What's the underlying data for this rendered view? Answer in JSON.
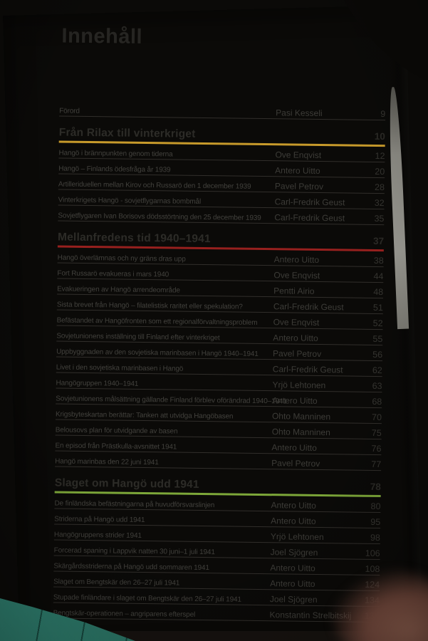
{
  "photo": {
    "background_color": "#0b0a08",
    "paper_color": "#b7b6b2",
    "table_color": "#2f8070"
  },
  "book_page": {
    "title": "Innehåll",
    "front_matter": {
      "title": "Förord",
      "author": "Pasi Kesseli",
      "page": "9"
    },
    "sections": [
      {
        "title": "Från Rilax till vinterkriget",
        "page": "10",
        "accent_color": "#c79a2b",
        "entries": [
          {
            "title": "Hangö i brännpunkten genom tiderna",
            "author": "Ove Enqvist",
            "page": "12"
          },
          {
            "title": "Hangö – Finlands ödesfråga år 1939",
            "author": "Antero Uitto",
            "page": "20"
          },
          {
            "title": "Artilleriduellen mellan Kirov och Russarö den 1 december 1939",
            "author": "Pavel Petrov",
            "page": "28"
          },
          {
            "title": "Vinterkrigets Hangö - sovjetflygarnas bombmål",
            "author": "Carl-Fredrik Geust",
            "page": "32"
          },
          {
            "title": "Sovjetflygaren Ivan Borisovs dödsstörtning den 25 december 1939",
            "author": "Carl-Fredrik Geust",
            "page": "35"
          }
        ]
      },
      {
        "title": "Mellanfredens tid 1940–1941",
        "page": "37",
        "accent_color": "#97201e",
        "entries": [
          {
            "title": "Hangö överlämnas och ny gräns dras upp",
            "author": "Antero Uitto",
            "page": "38"
          },
          {
            "title": "Fort Russarö evakueras i mars 1940",
            "author": "Ove Enqvist",
            "page": "44"
          },
          {
            "title": "Evakueringen av Hangö arrendeområde",
            "author": "Pentti Airio",
            "page": "48"
          },
          {
            "title": "Sista brevet från Hangö – filatelistisk raritet eller spekulation?",
            "author": "Carl-Fredrik Geust",
            "page": "51"
          },
          {
            "title": "Befästandet av Hangöfronten som ett regionalförvaltningsproblem",
            "author": "Ove Enqvist",
            "page": "52"
          },
          {
            "title": "Sovjetunionens inställning till Finland efter vinterkriget",
            "author": "Antero Uitto",
            "page": "55"
          },
          {
            "title": "Uppbyggnaden av den sovjetiska marinbasen i Hangö 1940–1941",
            "author": "Pavel Petrov",
            "page": "56"
          },
          {
            "title": "Livet i den sovjetiska marinbasen i Hangö",
            "author": "Carl-Fredrik Geust",
            "page": "62"
          },
          {
            "title": "Hangögruppen 1940–1941",
            "author": "Yrjö Lehtonen",
            "page": "63"
          },
          {
            "title": "Sovjetunionens målsättning gällande Finland förblev oförändrad 1940–1941",
            "author": "Antero Uitto",
            "page": "68"
          },
          {
            "title": "Krigsbyteskartan berättar: Tanken att utvidga Hangöbasen",
            "author": "Ohto Manninen",
            "page": "70"
          },
          {
            "title": "Belousovs plan för utvidgande av basen",
            "author": "Ohto Manninen",
            "page": "75"
          },
          {
            "title": "En episod från Prästkulla-avsnittet 1941",
            "author": "Antero Uitto",
            "page": "76"
          },
          {
            "title": "Hangö marinbas den 22 juni 1941",
            "author": "Pavel Petrov",
            "page": "77"
          }
        ]
      },
      {
        "title": "Slaget om Hangö udd 1941",
        "page": "78",
        "accent_color": "#7da739",
        "entries": [
          {
            "title": "De finländska befästningarna på huvudförsvarslinjen",
            "author": "Antero Uitto",
            "page": "80"
          },
          {
            "title": "Striderna på Hangö udd 1941",
            "author": "Antero Uitto",
            "page": "95"
          },
          {
            "title": "Hangögruppens strider 1941",
            "author": "Yrjö Lehtonen",
            "page": "98"
          },
          {
            "title": "Forcerad spaning i Lappvik natten 30 juni–1 juli 1941",
            "author": "Joel Sjögren",
            "page": "106"
          },
          {
            "title": "Skärgårdsstriderna på Hangö udd sommaren 1941",
            "author": "Antero Uitto",
            "page": "108"
          },
          {
            "title": "Slaget om Bengtskär den 26–27 juli 1941",
            "author": "Antero Uitto",
            "page": "124"
          },
          {
            "title": "Stupade finländare i slaget om Bengtskär den 26–27 juli 1941",
            "author": "Joel Sjögren",
            "page": "134"
          },
          {
            "title": "Bengtskär-operationen – angriparens efterspel",
            "author": "Konstantin Strelbitskij",
            "page": "135"
          }
        ]
      }
    ]
  }
}
